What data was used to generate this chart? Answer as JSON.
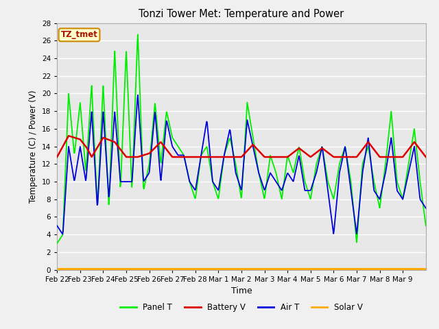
{
  "title": "Tonzi Tower Met: Temperature and Power",
  "xlabel": "Time",
  "ylabel": "Temperature (C) / Power (V)",
  "ylim": [
    0,
    28
  ],
  "yticks": [
    0,
    2,
    4,
    6,
    8,
    10,
    12,
    14,
    16,
    18,
    20,
    22,
    24,
    26,
    28
  ],
  "figure_bg": "#f0f0f0",
  "plot_bg": "#e8e8e8",
  "grid_color": "#ffffff",
  "annotation_text": "TZ_tmet",
  "annotation_fg": "#aa1100",
  "annotation_bg": "#ffffcc",
  "annotation_border": "#cc8800",
  "legend_items": [
    "Panel T",
    "Battery V",
    "Air T",
    "Solar V"
  ],
  "legend_colors": [
    "#00ee00",
    "#dd0000",
    "#0000dd",
    "#ffaa00"
  ],
  "x_tick_labels": [
    "Feb 22",
    "Feb 23",
    "Feb 24",
    "Feb 25",
    "Feb 26",
    "Feb 27",
    "Feb 28",
    "Mar 1",
    "Mar 2",
    "Mar 3",
    "Mar 4",
    "Mar 5",
    "Mar 6",
    "Mar 7",
    "Mar 8",
    "Mar 9"
  ],
  "panel_t_kx": [
    0,
    0.25,
    0.5,
    0.75,
    1.0,
    1.25,
    1.5,
    1.75,
    2.0,
    2.25,
    2.5,
    2.75,
    3.0,
    3.25,
    3.5,
    3.75,
    4.0,
    4.25,
    4.5,
    4.75,
    5.0,
    5.25,
    5.5,
    5.75,
    6.0,
    6.25,
    6.5,
    6.75,
    7.0,
    7.25,
    7.5,
    7.75,
    8.0,
    8.25,
    8.5,
    8.75,
    9.0,
    9.25,
    9.5,
    9.75,
    10.0,
    10.25,
    10.5,
    10.75,
    11.0,
    11.25,
    11.5,
    11.75,
    12.0,
    12.25,
    12.5,
    12.75,
    13.0,
    13.25,
    13.5,
    13.75,
    14.0,
    14.25,
    14.5,
    14.75,
    15.0,
    15.25,
    15.5,
    15.75,
    16.0
  ],
  "panel_t_ky": [
    3,
    4,
    20,
    13,
    19,
    11,
    21,
    7,
    21,
    7,
    25,
    9,
    25,
    9,
    27,
    9,
    12,
    19,
    12,
    18,
    15,
    14,
    13,
    10,
    8,
    13,
    14,
    10,
    8,
    13,
    15,
    12,
    8,
    19,
    15,
    11,
    8,
    13,
    11,
    8,
    13,
    11,
    14,
    10,
    8,
    12,
    14,
    10,
    8,
    12,
    14,
    10,
    3,
    12,
    14,
    10,
    7,
    12,
    18,
    10,
    8,
    12,
    16,
    10,
    5
  ],
  "air_t_kx": [
    0,
    0.25,
    0.5,
    0.75,
    1.0,
    1.25,
    1.5,
    1.75,
    2.0,
    2.25,
    2.5,
    2.75,
    3.0,
    3.25,
    3.5,
    3.75,
    4.0,
    4.25,
    4.5,
    4.75,
    5.0,
    5.25,
    5.5,
    5.75,
    6.0,
    6.25,
    6.5,
    6.75,
    7.0,
    7.25,
    7.5,
    7.75,
    8.0,
    8.25,
    8.5,
    8.75,
    9.0,
    9.25,
    9.5,
    9.75,
    10.0,
    10.25,
    10.5,
    10.75,
    11.0,
    11.25,
    11.5,
    11.75,
    12.0,
    12.25,
    12.5,
    12.75,
    13.0,
    13.25,
    13.5,
    13.75,
    14.0,
    14.25,
    14.5,
    14.75,
    15.0,
    15.25,
    15.5,
    15.75,
    16.0
  ],
  "air_t_ky": [
    5,
    4,
    14,
    10,
    14,
    10,
    18,
    7,
    18,
    8,
    18,
    10,
    10,
    10,
    20,
    10,
    11,
    18,
    10,
    17,
    14,
    13,
    13,
    10,
    9,
    13,
    17,
    10,
    9,
    13,
    16,
    11,
    9,
    17,
    14,
    11,
    9,
    11,
    10,
    9,
    11,
    10,
    13,
    9,
    9,
    11,
    14,
    9,
    4,
    11,
    14,
    9,
    4,
    11,
    15,
    9,
    8,
    11,
    15,
    9,
    8,
    11,
    14,
    8,
    7
  ],
  "battery_v_kx": [
    0,
    0.5,
    1.0,
    1.3,
    1.5,
    2.0,
    2.5,
    3.0,
    3.5,
    4.0,
    4.5,
    5.0,
    5.5,
    6.0,
    6.5,
    7.0,
    7.5,
    8.0,
    8.5,
    9.0,
    9.5,
    10.0,
    10.5,
    11.0,
    11.5,
    12.0,
    12.5,
    13.0,
    13.5,
    14.0,
    14.5,
    15.0,
    15.5,
    16.0
  ],
  "battery_v_ky": [
    12.8,
    15.2,
    14.8,
    13.8,
    12.8,
    15.0,
    14.5,
    12.8,
    12.8,
    13.2,
    14.5,
    12.8,
    12.8,
    12.8,
    12.8,
    12.8,
    12.8,
    12.8,
    14.2,
    12.8,
    12.8,
    12.8,
    13.8,
    12.8,
    13.8,
    12.8,
    12.8,
    12.8,
    14.5,
    12.8,
    12.8,
    12.8,
    14.5,
    12.8
  ],
  "solar_v": 0.1
}
